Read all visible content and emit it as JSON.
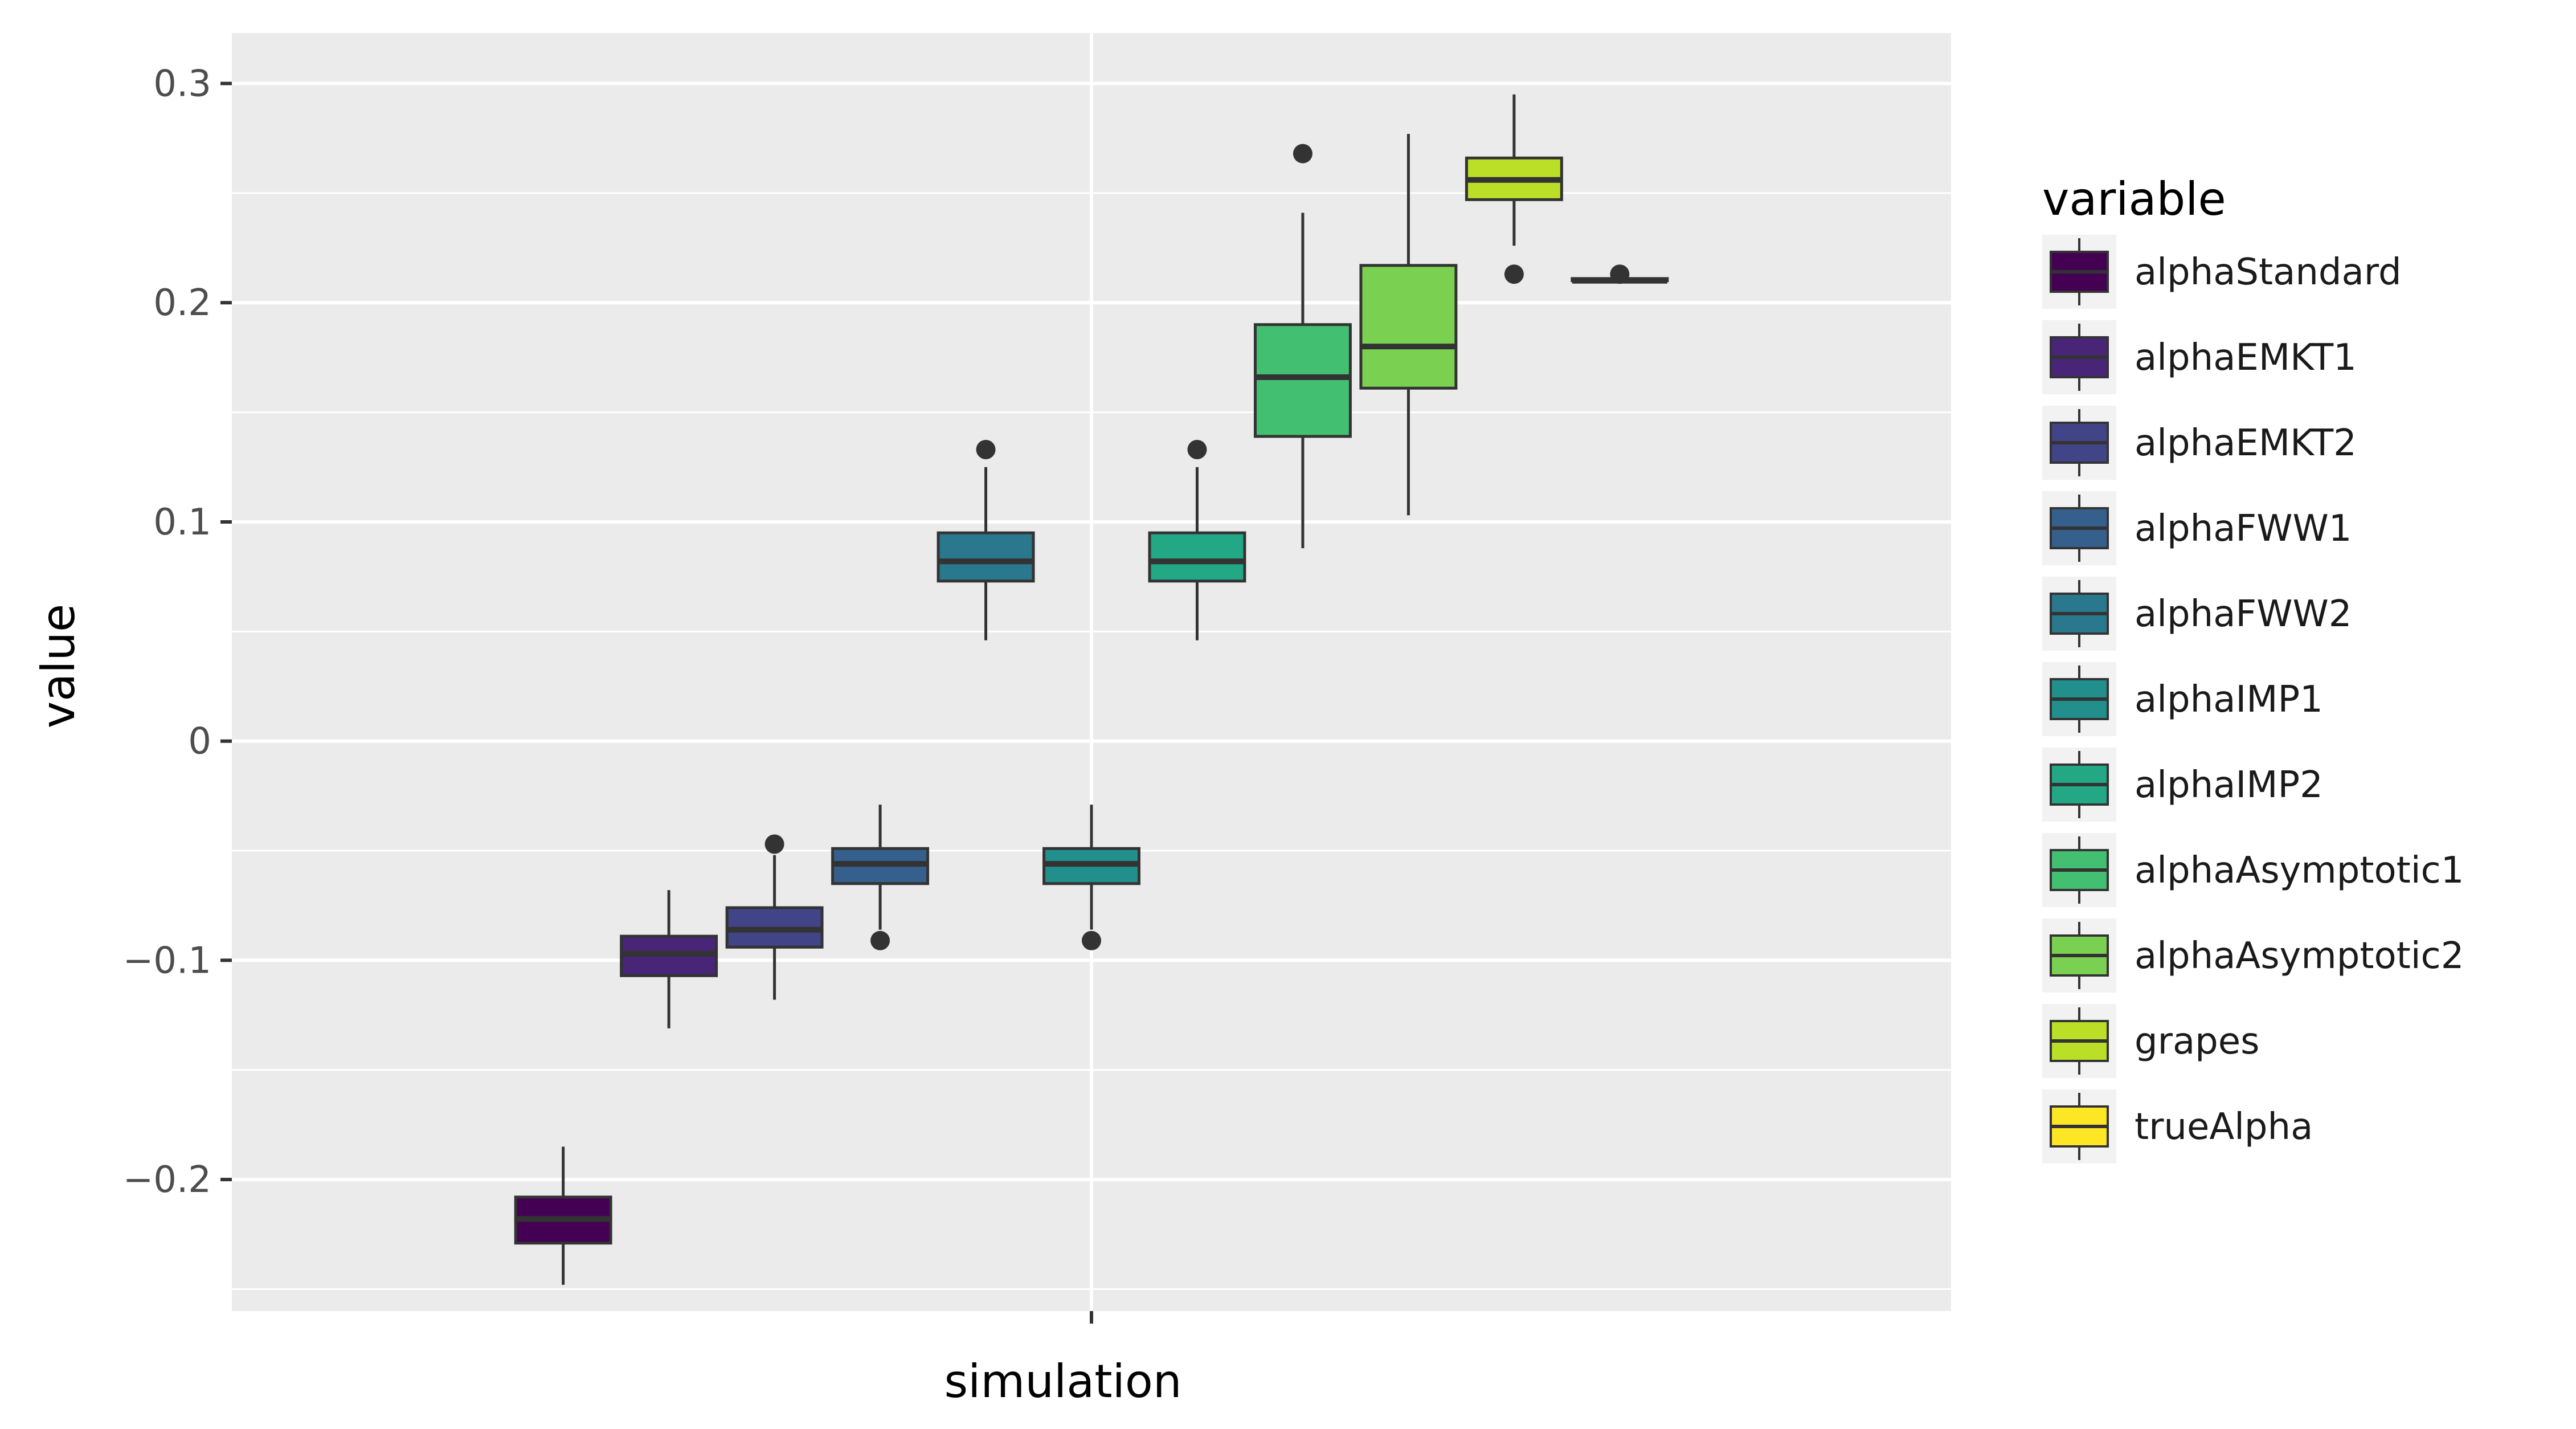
{
  "chart_data": {
    "type": "boxplot",
    "xlabel": "simulation",
    "ylabel": "value",
    "x_categories": [
      "simulation"
    ],
    "ylim": [
      -0.26,
      0.323
    ],
    "y_ticks": [
      {
        "value": -0.2,
        "label": "−0.2"
      },
      {
        "value": -0.1,
        "label": "−0.1"
      },
      {
        "value": 0,
        "label": "0"
      },
      {
        "value": 0.1,
        "label": "0.1"
      },
      {
        "value": 0.2,
        "label": "0.2"
      },
      {
        "value": 0.3,
        "label": "0.3"
      }
    ],
    "grid": true,
    "legend": {
      "title": "variable",
      "position": "right"
    },
    "series": [
      {
        "name": "alphaStandard",
        "color": "#440154",
        "whisker_low": -0.248,
        "q1": -0.229,
        "median": -0.218,
        "q3": -0.208,
        "whisker_high": -0.185,
        "outliers": []
      },
      {
        "name": "alphaEMKT1",
        "color": "#482576",
        "whisker_low": -0.131,
        "q1": -0.107,
        "median": -0.097,
        "q3": -0.089,
        "whisker_high": -0.068,
        "outliers": []
      },
      {
        "name": "alphaEMKT2",
        "color": "#414487",
        "whisker_low": -0.118,
        "q1": -0.094,
        "median": -0.086,
        "q3": -0.076,
        "whisker_high": -0.052,
        "outliers": [
          -0.047
        ]
      },
      {
        "name": "alphaFWW1",
        "color": "#35608D",
        "whisker_low": -0.086,
        "q1": -0.065,
        "median": -0.056,
        "q3": -0.049,
        "whisker_high": -0.029,
        "outliers": [
          -0.091
        ]
      },
      {
        "name": "alphaFWW2",
        "color": "#2A788E",
        "whisker_low": 0.046,
        "q1": 0.073,
        "median": 0.082,
        "q3": 0.095,
        "whisker_high": 0.125,
        "outliers": [
          0.133
        ]
      },
      {
        "name": "alphaIMP1",
        "color": "#21908C",
        "whisker_low": -0.086,
        "q1": -0.065,
        "median": -0.056,
        "q3": -0.049,
        "whisker_high": -0.029,
        "outliers": [
          -0.091
        ]
      },
      {
        "name": "alphaIMP2",
        "color": "#22A884",
        "whisker_low": 0.046,
        "q1": 0.073,
        "median": 0.082,
        "q3": 0.095,
        "whisker_high": 0.125,
        "outliers": [
          0.133
        ]
      },
      {
        "name": "alphaAsymptotic1",
        "color": "#43BF71",
        "whisker_low": 0.088,
        "q1": 0.139,
        "median": 0.166,
        "q3": 0.19,
        "whisker_high": 0.241,
        "outliers": [
          0.268
        ]
      },
      {
        "name": "alphaAsymptotic2",
        "color": "#7AD151",
        "whisker_low": 0.103,
        "q1": 0.161,
        "median": 0.18,
        "q3": 0.217,
        "whisker_high": 0.277,
        "outliers": []
      },
      {
        "name": "grapes",
        "color": "#BBDF27",
        "whisker_low": 0.226,
        "q1": 0.247,
        "median": 0.256,
        "q3": 0.266,
        "whisker_high": 0.295,
        "outliers": [
          0.213
        ]
      },
      {
        "name": "trueAlpha",
        "color": "#FDE725",
        "whisker_low": 0.21,
        "q1": 0.21,
        "median": 0.21,
        "q3": 0.211,
        "whisker_high": 0.211,
        "outliers": [
          0.213
        ]
      }
    ]
  }
}
